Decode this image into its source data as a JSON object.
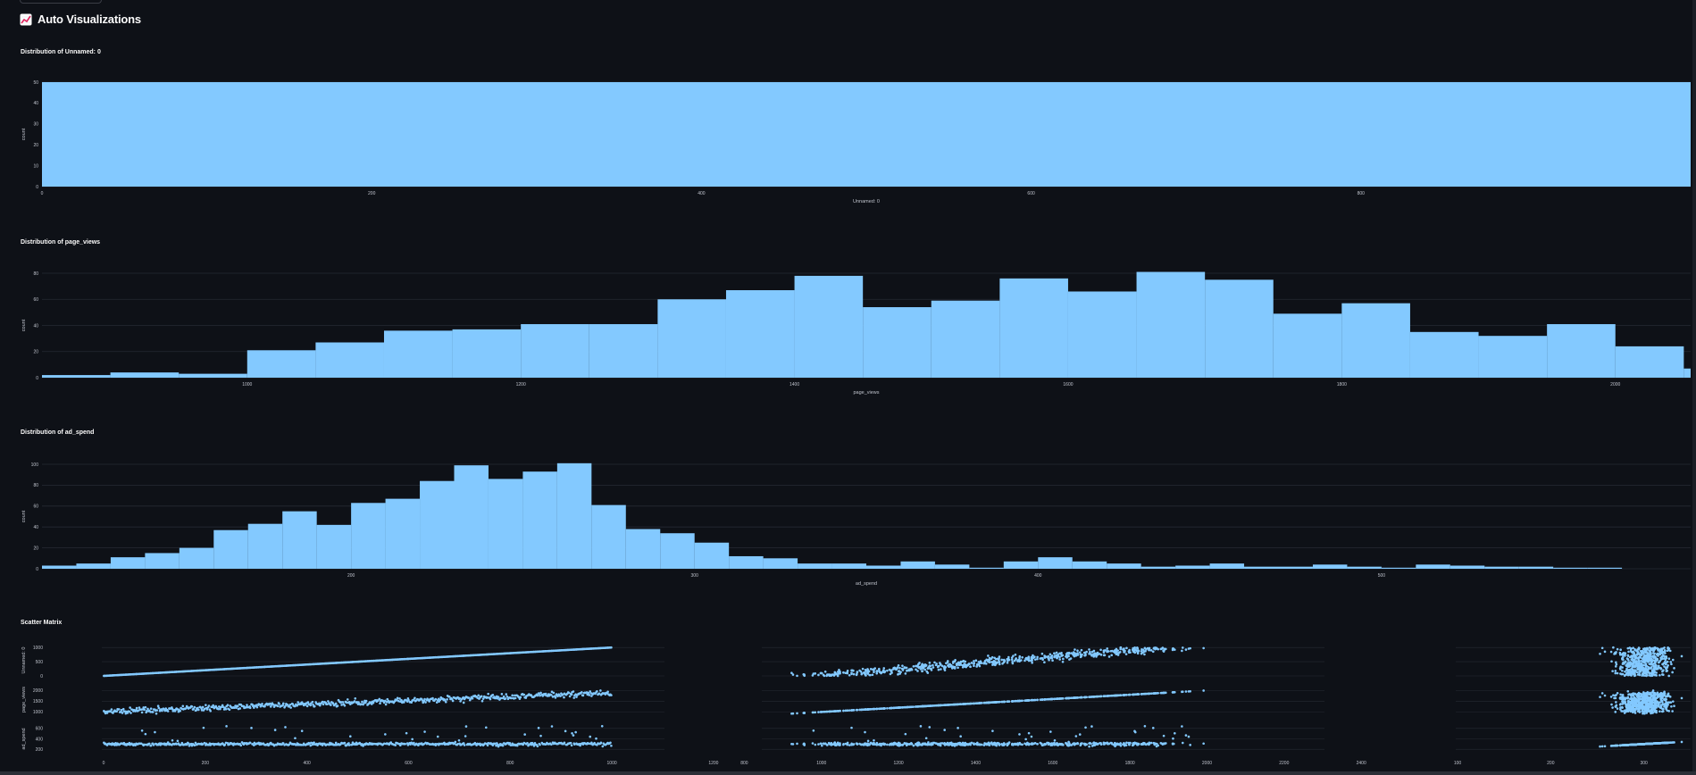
{
  "page": {
    "title": "Auto Visualizations",
    "icon": "chart-increasing-icon"
  },
  "colors": {
    "bar": "#83c9ff",
    "background": "#0e1117",
    "grid": "#262a33",
    "text": "#bfc3cc"
  },
  "charts": {
    "unnamed": {
      "title": "Distribution of Unnamed: 0"
    },
    "page_views": {
      "title": "Distribution of page_views"
    },
    "ad_spend": {
      "title": "Distribution of ad_spend"
    },
    "scatter": {
      "title": "Scatter Matrix"
    }
  },
  "chart_data": [
    {
      "type": "bar",
      "title": "Distribution of Unnamed: 0",
      "xlabel": "Unnamed: 0",
      "ylabel": "count",
      "xlim": [
        0,
        1000
      ],
      "ylim": [
        0,
        50
      ],
      "xticks": [
        0,
        200,
        400,
        600,
        800
      ],
      "yticks": [
        0,
        10,
        20,
        30,
        40,
        50
      ],
      "bins": [
        {
          "x0": 0,
          "x1": 1000,
          "y": 50
        }
      ]
    },
    {
      "type": "bar",
      "title": "Distribution of page_views",
      "xlabel": "page_views",
      "ylabel": "count",
      "xlim": [
        850,
        2055
      ],
      "ylim": [
        0,
        80
      ],
      "xticks": [
        1000,
        1200,
        1400,
        1600,
        1800,
        2000
      ],
      "yticks": [
        0,
        20,
        40,
        60,
        80
      ],
      "bin_start": 850,
      "bin_width": 50,
      "values": [
        2,
        4,
        3,
        21,
        27,
        36,
        37,
        41,
        41,
        60,
        67,
        78,
        54,
        59,
        76,
        66,
        81,
        75,
        49,
        57,
        35,
        32,
        41,
        24,
        7
      ]
    },
    {
      "type": "bar",
      "title": "Distribution of ad_spend",
      "xlabel": "ad_spend",
      "ylabel": "count",
      "xlim": [
        110,
        590
      ],
      "ylim": [
        0,
        100
      ],
      "xticks": [
        200,
        300,
        400,
        500
      ],
      "yticks": [
        0,
        20,
        40,
        60,
        80,
        100
      ],
      "bin_start": 110,
      "bin_width": 10,
      "values": [
        3,
        5,
        11,
        15,
        20,
        37,
        43,
        55,
        42,
        63,
        67,
        84,
        99,
        86,
        93,
        101,
        61,
        38,
        34,
        25,
        12,
        10,
        5,
        5,
        3,
        7,
        4,
        1,
        7,
        11,
        7,
        5,
        2,
        3,
        5,
        2,
        2,
        4,
        2,
        1,
        4,
        3,
        2,
        2,
        1,
        1
      ]
    },
    {
      "type": "scatter",
      "title": "Scatter Matrix",
      "dimensions": [
        "Unnamed: 0",
        "page_views",
        "ad_spend"
      ],
      "ranges": {
        "Unnamed: 0": [
          0,
          1100
        ],
        "page_views": [
          850,
          2300
        ],
        "ad_spend": [
          100,
          700
        ]
      },
      "col_ticks": [
        [
          0,
          200,
          400,
          600,
          800,
          1000,
          1200
        ],
        [
          800,
          1000,
          1200,
          1400,
          1600,
          1800,
          2000,
          2200,
          2400
        ],
        [
          100,
          200,
          300
        ]
      ],
      "row_ticks": [
        [
          0,
          500,
          1000
        ],
        [
          1000,
          1500,
          2000
        ],
        [
          200,
          400,
          600
        ]
      ],
      "n_points": 1000
    }
  ]
}
